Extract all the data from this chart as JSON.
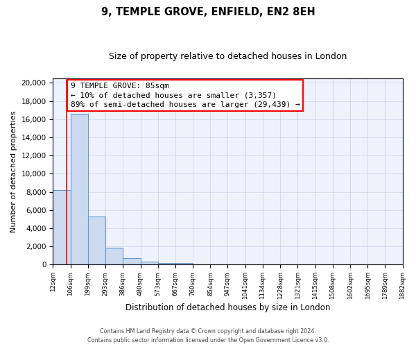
{
  "title": "9, TEMPLE GROVE, ENFIELD, EN2 8EH",
  "subtitle": "Size of property relative to detached houses in London",
  "xlabel": "Distribution of detached houses by size in London",
  "ylabel": "Number of detached properties",
  "bar_edges": [
    12,
    106,
    199,
    293,
    386,
    480,
    573,
    667,
    760,
    854,
    947,
    1041,
    1134,
    1228,
    1321,
    1415,
    1508,
    1602,
    1695,
    1789,
    1882
  ],
  "bar_heights": [
    8200,
    16600,
    5300,
    1850,
    700,
    300,
    200,
    200,
    0,
    0,
    0,
    0,
    0,
    0,
    0,
    0,
    0,
    0,
    0,
    0
  ],
  "bar_color": "#ccdaf0",
  "bar_edge_color": "#6699cc",
  "red_line_x": 85,
  "annotation_line1": "9 TEMPLE GROVE: 85sqm",
  "annotation_line2": "← 10% of detached houses are smaller (3,357)",
  "annotation_line3": "89% of semi-detached houses are larger (29,439) →",
  "ylim": [
    0,
    20500
  ],
  "yticks": [
    0,
    2000,
    4000,
    6000,
    8000,
    10000,
    12000,
    14000,
    16000,
    18000,
    20000
  ],
  "tick_labels": [
    "12sqm",
    "106sqm",
    "199sqm",
    "293sqm",
    "386sqm",
    "480sqm",
    "573sqm",
    "667sqm",
    "760sqm",
    "854sqm",
    "947sqm",
    "1041sqm",
    "1134sqm",
    "1228sqm",
    "1321sqm",
    "1415sqm",
    "1508sqm",
    "1602sqm",
    "1695sqm",
    "1789sqm",
    "1882sqm"
  ],
  "footer_line1": "Contains HM Land Registry data © Crown copyright and database right 2024.",
  "footer_line2": "Contains public sector information licensed under the Open Government Licence v3.0.",
  "bg_color": "#ffffff",
  "plot_bg_color": "#eef2fa",
  "grid_color": "#c8d4e8",
  "annotation_font_size": 8.0,
  "title_font_size": 10.5,
  "subtitle_font_size": 9.0,
  "ylabel_fontsize": 8.0,
  "xlabel_fontsize": 8.5
}
